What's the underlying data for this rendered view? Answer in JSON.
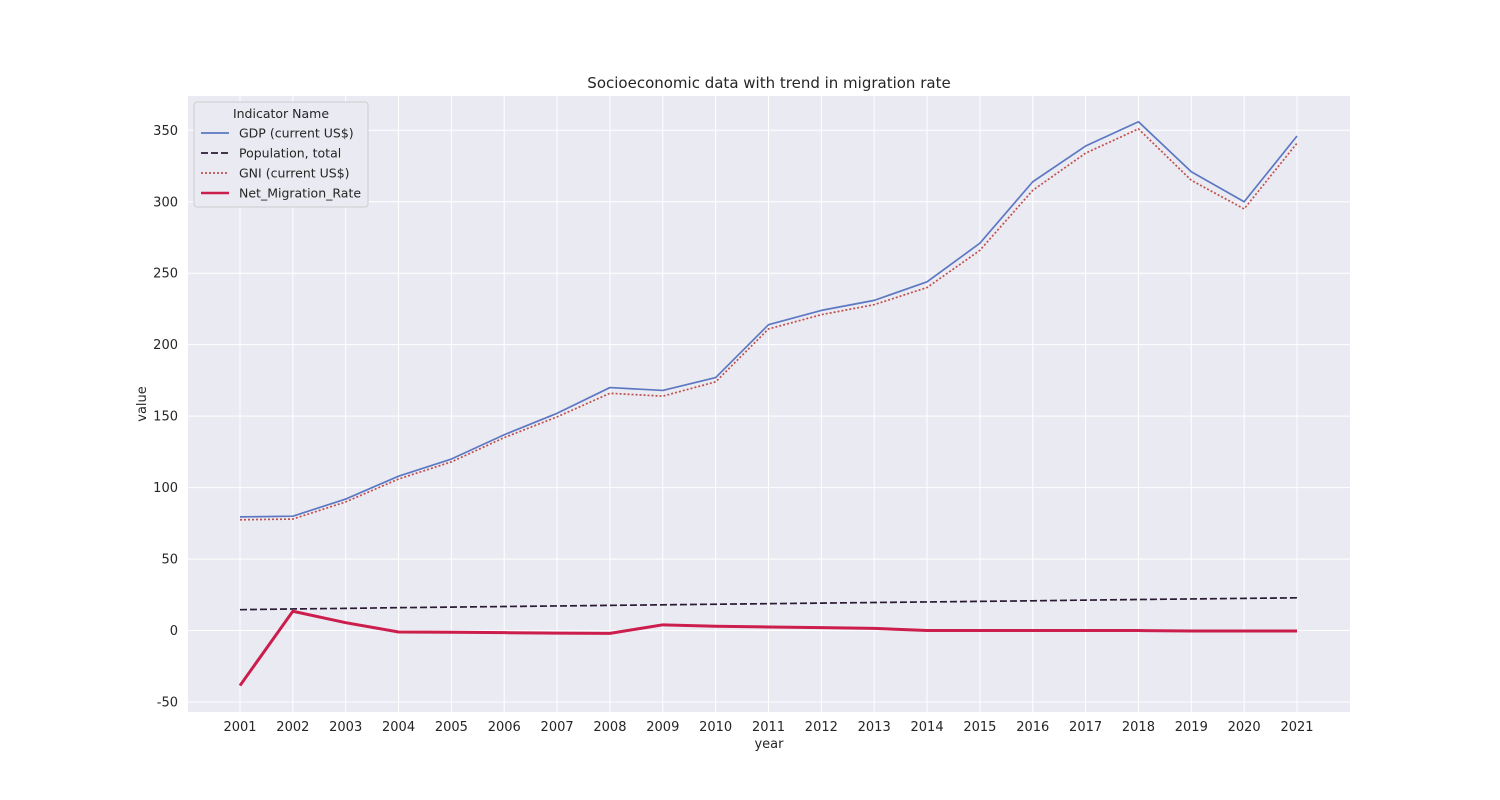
{
  "chart_data": {
    "type": "line",
    "title": "Socioeconomic data with trend in migration rate",
    "xlabel": "year",
    "ylabel": "value",
    "x": [
      "2001",
      "2002",
      "2003",
      "2004",
      "2005",
      "2006",
      "2007",
      "2008",
      "2009",
      "2010",
      "2011",
      "2012",
      "2013",
      "2014",
      "2015",
      "2016",
      "2017",
      "2018",
      "2019",
      "2020",
      "2021"
    ],
    "ylim": [
      -57,
      374
    ],
    "yticks": [
      -50,
      0,
      50,
      100,
      150,
      200,
      250,
      300,
      350
    ],
    "grid": true,
    "legend": {
      "title": "Indicator Name",
      "placement": "top-left"
    },
    "series": [
      {
        "name": "GDP (current US$)",
        "color": "#5d78c2",
        "dash": "solid",
        "values": [
          79.5,
          80,
          92,
          108,
          120,
          137,
          152,
          170,
          168,
          177,
          214,
          224,
          231,
          244,
          271,
          314,
          339,
          356,
          321,
          300,
          346
        ]
      },
      {
        "name": "Population, total",
        "color": "#2a1a33",
        "dash": "dashed",
        "values": [
          14.6,
          15.1,
          15.5,
          16.0,
          16.4,
          16.8,
          17.2,
          17.6,
          18.0,
          18.4,
          18.8,
          19.2,
          19.6,
          20.0,
          20.4,
          20.8,
          21.3,
          21.7,
          22.1,
          22.5,
          22.9
        ]
      },
      {
        "name": "GNI (current US$)",
        "color": "#c0504d",
        "dash": "dotted",
        "values": [
          77.5,
          78,
          90,
          106,
          118,
          135,
          149.5,
          166,
          164,
          174,
          211,
          221,
          228,
          240,
          266,
          308,
          334,
          351,
          315,
          295,
          341
        ]
      },
      {
        "name": "Net_Migration_Rate",
        "color": "#cc1e4d",
        "dash": "solid",
        "values": [
          -38.5,
          13.5,
          5.5,
          -1,
          -1.2,
          -1.5,
          -1.8,
          -2,
          4,
          3,
          2.5,
          2,
          1.5,
          0,
          0,
          0,
          0,
          0,
          -0.3,
          -0.3,
          -0.3
        ]
      }
    ]
  }
}
